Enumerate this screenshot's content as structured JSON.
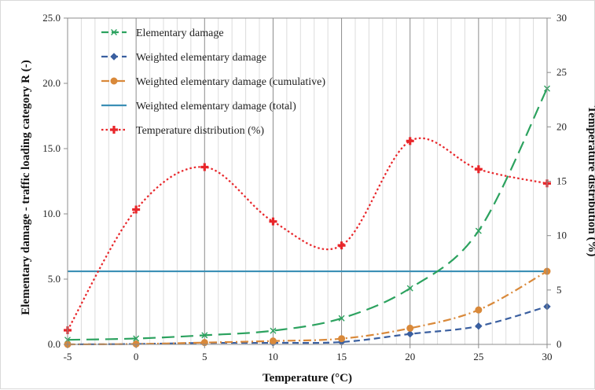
{
  "chart_data": {
    "type": "line",
    "x": [
      -5,
      0,
      5,
      10,
      15,
      20,
      25,
      30
    ],
    "xlabel": "Temperature (°C)",
    "ylabel": "Elementary damage - traffic loading category R (-)",
    "y2label": "Temperature distribution (%)",
    "xlim": [
      -5,
      30
    ],
    "ylim": [
      0,
      25
    ],
    "y2lim": [
      0,
      30
    ],
    "xticks": [
      "-5",
      "0",
      "5",
      "10",
      "15",
      "20",
      "25",
      "30"
    ],
    "yticks": [
      "0.0",
      "5.0",
      "10.0",
      "15.0",
      "20.0",
      "25.0"
    ],
    "y2ticks": [
      "0",
      "5",
      "10",
      "15",
      "20",
      "25",
      "30"
    ],
    "grid": true,
    "legend_position": "top-left",
    "series": [
      {
        "name": "Elementary damage",
        "axis": "left",
        "color": "#2ca25f",
        "dash": "dashed-long",
        "marker": "x",
        "values": [
          0.35,
          0.45,
          0.7,
          1.05,
          2.0,
          4.3,
          8.7,
          19.6
        ]
      },
      {
        "name": "Weighted elementary damage",
        "axis": "left",
        "color": "#3a5fa0",
        "dash": "dashed",
        "marker": "diamond",
        "values": [
          0.0,
          0.03,
          0.11,
          0.12,
          0.18,
          0.8,
          1.4,
          2.9
        ]
      },
      {
        "name": "Weighted elementary damage (cumulative)",
        "axis": "left",
        "color": "#d9893a",
        "dash": "dash-dot",
        "marker": "circle",
        "values": [
          0.0,
          0.03,
          0.14,
          0.26,
          0.44,
          1.24,
          2.64,
          5.6
        ]
      },
      {
        "name": "Weighted elementary damage (total)",
        "axis": "left",
        "color": "#3b8fb5",
        "dash": "solid",
        "marker": "none",
        "values": [
          5.6,
          5.6,
          5.6,
          5.6,
          5.6,
          5.6,
          5.6,
          5.6
        ]
      },
      {
        "name": "Temperature distribution (%)",
        "axis": "right",
        "color": "#e8262a",
        "dash": "dotted",
        "marker": "plus",
        "values": [
          1.3,
          12.4,
          16.3,
          11.3,
          9.1,
          18.7,
          16.1,
          14.8
        ]
      }
    ]
  }
}
